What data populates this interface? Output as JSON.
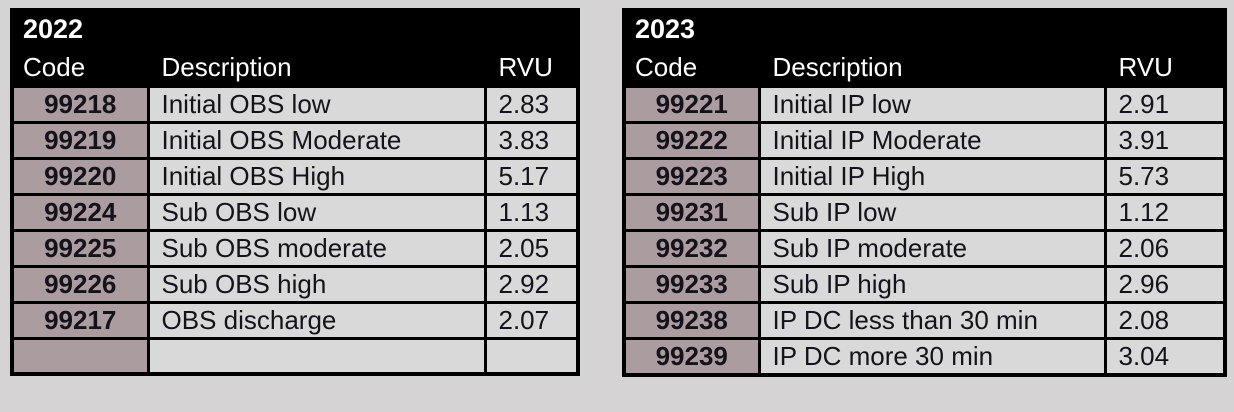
{
  "colors": {
    "page_bg": "#d5d3d3",
    "header_bg": "#000000",
    "header_text": "#ffffff",
    "code_cell_bg": "#ab9c9f",
    "data_cell_bg": "#d9d9d9",
    "border": "#000000",
    "data_text": "#14121a"
  },
  "tables": [
    {
      "title": "2022",
      "columns": [
        "Code",
        "Description",
        "RVU"
      ],
      "rows": [
        {
          "code": "99218",
          "description": "Initial OBS low",
          "rvu": "2.83"
        },
        {
          "code": "99219",
          "description": "Initial OBS Moderate",
          "rvu": "3.83"
        },
        {
          "code": "99220",
          "description": "Initial OBS High",
          "rvu": "5.17"
        },
        {
          "code": "99224",
          "description": "Sub OBS low",
          "rvu": "1.13"
        },
        {
          "code": "99225",
          "description": "Sub OBS moderate",
          "rvu": "2.05"
        },
        {
          "code": "99226",
          "description": "Sub OBS high",
          "rvu": "2.92"
        },
        {
          "code": "99217",
          "description": "OBS discharge",
          "rvu": "2.07"
        },
        {
          "code": "",
          "description": "",
          "rvu": ""
        }
      ]
    },
    {
      "title": "2023",
      "columns": [
        "Code",
        "Description",
        "RVU"
      ],
      "rows": [
        {
          "code": "99221",
          "description": "Initial IP low",
          "rvu": "2.91"
        },
        {
          "code": "99222",
          "description": "Initial IP Moderate",
          "rvu": "3.91"
        },
        {
          "code": "99223",
          "description": "Initial IP High",
          "rvu": "5.73"
        },
        {
          "code": "99231",
          "description": "Sub IP low",
          "rvu": "1.12"
        },
        {
          "code": "99232",
          "description": "Sub IP moderate",
          "rvu": "2.06"
        },
        {
          "code": "99233",
          "description": "Sub IP high",
          "rvu": "2.96"
        },
        {
          "code": "99238",
          "description": "IP DC less than 30 min",
          "rvu": "2.08"
        },
        {
          "code": "99239",
          "description": "IP DC more 30 min",
          "rvu": "3.04"
        }
      ]
    }
  ]
}
